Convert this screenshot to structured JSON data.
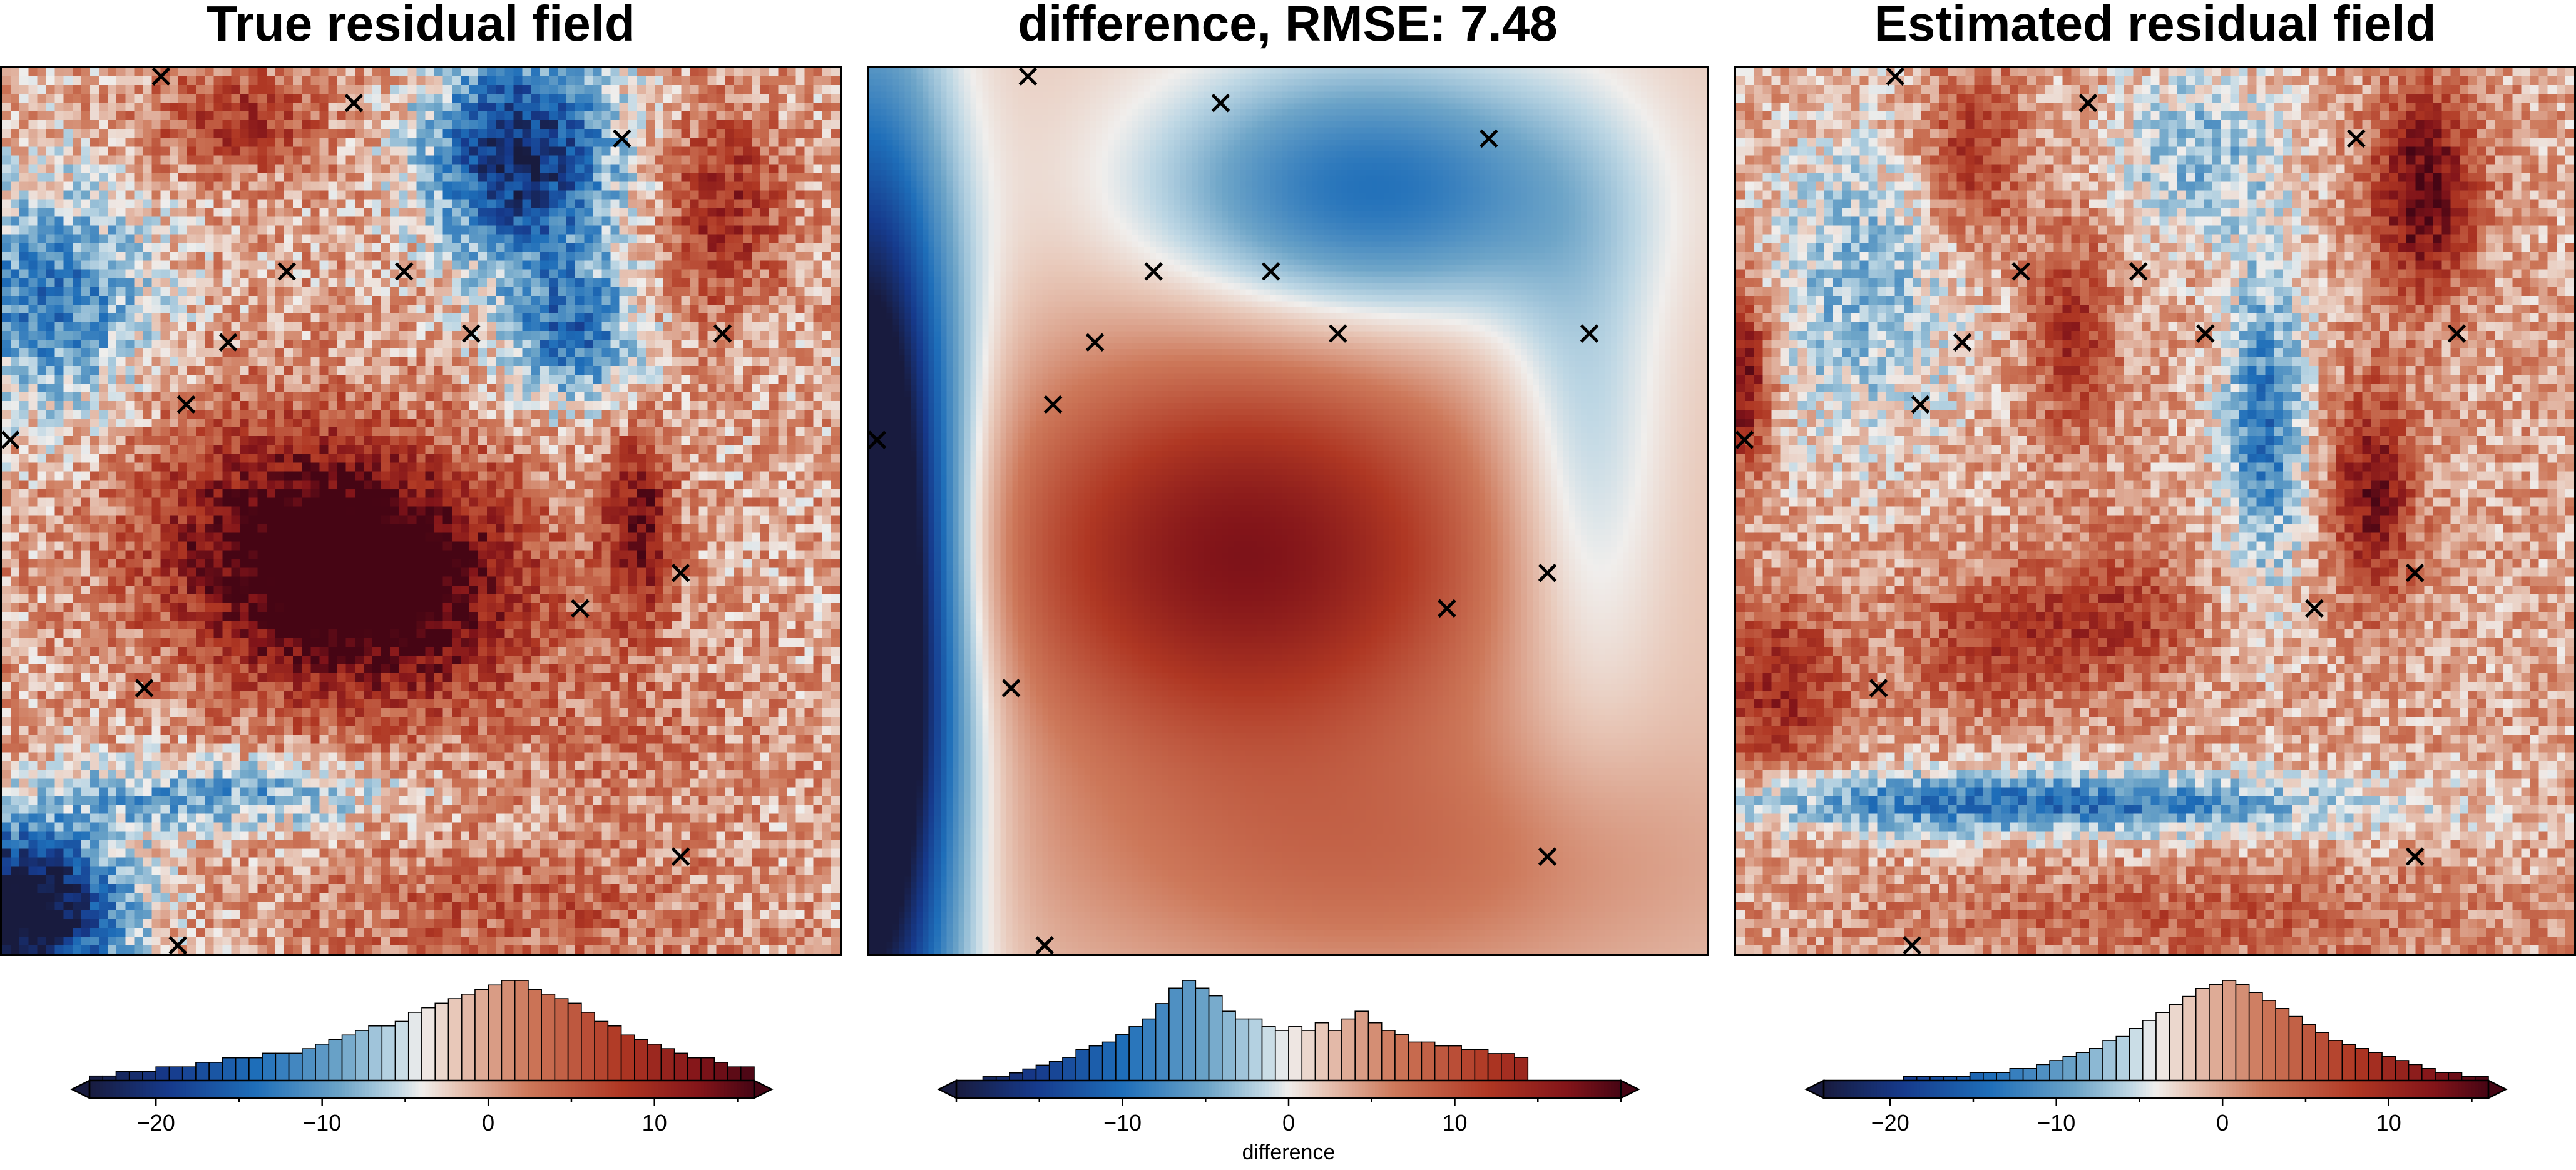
{
  "panels": [
    {
      "title": "True residual field",
      "colorbar": {
        "vmin": -24,
        "vmax": 16,
        "ticks": [
          -20,
          -10,
          0,
          10
        ],
        "label": ""
      },
      "field": {
        "kind": "true"
      }
    },
    {
      "title": "difference, RMSE: 7.48",
      "colorbar": {
        "vmin": -20,
        "vmax": 20,
        "ticks": [
          -10,
          0,
          10
        ],
        "label": "difference"
      },
      "field": {
        "kind": "diff"
      }
    },
    {
      "title": "Estimated residual field",
      "colorbar": {
        "vmin": -24,
        "vmax": 16,
        "ticks": [
          -20,
          -10,
          0,
          10
        ],
        "label": ""
      },
      "field": {
        "kind": "est"
      }
    }
  ],
  "chart_data": [
    {
      "type": "heatmap",
      "title": "True residual field",
      "colormap": "vik",
      "value_range": [
        -24,
        16
      ],
      "colorbar_ticks": [
        -20,
        -10,
        0,
        10
      ],
      "histogram": {
        "bin_range": [
          -24,
          16
        ],
        "counts": [
          1,
          1,
          2,
          2,
          2,
          3,
          3,
          3,
          4,
          4,
          5,
          5,
          5,
          6,
          6,
          6,
          7,
          8,
          9,
          10,
          11,
          12,
          12,
          13,
          15,
          16,
          17,
          18,
          19,
          20,
          21,
          22,
          22,
          20,
          19,
          18,
          17,
          15,
          13,
          12,
          10,
          9,
          8,
          7,
          6,
          5,
          5,
          4,
          3,
          3
        ]
      },
      "points": [
        [
          0.19,
          0.01
        ],
        [
          0.42,
          0.04
        ],
        [
          0.74,
          0.08
        ],
        [
          0.34,
          0.23
        ],
        [
          0.48,
          0.23
        ],
        [
          0.27,
          0.31
        ],
        [
          0.56,
          0.3
        ],
        [
          0.86,
          0.3
        ],
        [
          0.22,
          0.38
        ],
        [
          0.01,
          0.42
        ],
        [
          0.81,
          0.57
        ],
        [
          0.69,
          0.61
        ],
        [
          0.17,
          0.7
        ],
        [
          0.81,
          0.89
        ],
        [
          0.21,
          0.99
        ]
      ]
    },
    {
      "type": "heatmap",
      "title": "difference, RMSE: 7.48",
      "colormap": "vik",
      "value_range": [
        -20,
        20
      ],
      "colorbar_ticks": [
        -10,
        0,
        10
      ],
      "colorbar_label": "difference",
      "histogram": {
        "bin_range": [
          -20,
          20
        ],
        "counts": [
          0,
          0,
          1,
          1,
          2,
          3,
          4,
          5,
          6,
          8,
          9,
          10,
          12,
          14,
          16,
          20,
          24,
          26,
          24,
          22,
          18,
          16,
          16,
          14,
          13,
          14,
          13,
          15,
          13,
          16,
          18,
          15,
          13,
          12,
          10,
          10,
          9,
          9,
          8,
          8,
          7,
          7,
          6,
          0,
          0,
          0,
          0,
          0,
          0,
          0
        ]
      },
      "points": [
        [
          0.19,
          0.01
        ],
        [
          0.42,
          0.04
        ],
        [
          0.74,
          0.08
        ],
        [
          0.34,
          0.23
        ],
        [
          0.48,
          0.23
        ],
        [
          0.27,
          0.31
        ],
        [
          0.56,
          0.3
        ],
        [
          0.86,
          0.3
        ],
        [
          0.22,
          0.38
        ],
        [
          0.01,
          0.42
        ],
        [
          0.81,
          0.57
        ],
        [
          0.69,
          0.61
        ],
        [
          0.17,
          0.7
        ],
        [
          0.81,
          0.89
        ],
        [
          0.21,
          0.99
        ]
      ]
    },
    {
      "type": "heatmap",
      "title": "Estimated residual field",
      "colormap": "vik",
      "value_range": [
        -24,
        16
      ],
      "colorbar_ticks": [
        -20,
        -10,
        0,
        10
      ],
      "histogram": {
        "bin_range": [
          -24,
          16
        ],
        "counts": [
          0,
          0,
          0,
          0,
          0,
          0,
          1,
          1,
          1,
          1,
          1,
          2,
          2,
          2,
          3,
          3,
          4,
          5,
          6,
          7,
          8,
          10,
          11,
          13,
          15,
          17,
          19,
          21,
          23,
          24,
          25,
          24,
          22,
          20,
          18,
          16,
          14,
          12,
          10,
          9,
          8,
          7,
          6,
          5,
          4,
          3,
          2,
          2,
          1,
          1
        ]
      },
      "points": [
        [
          0.19,
          0.01
        ],
        [
          0.42,
          0.04
        ],
        [
          0.74,
          0.08
        ],
        [
          0.34,
          0.23
        ],
        [
          0.48,
          0.23
        ],
        [
          0.27,
          0.31
        ],
        [
          0.56,
          0.3
        ],
        [
          0.86,
          0.3
        ],
        [
          0.22,
          0.38
        ],
        [
          0.01,
          0.42
        ],
        [
          0.81,
          0.57
        ],
        [
          0.69,
          0.61
        ],
        [
          0.17,
          0.7
        ],
        [
          0.81,
          0.89
        ],
        [
          0.21,
          0.99
        ]
      ]
    }
  ]
}
